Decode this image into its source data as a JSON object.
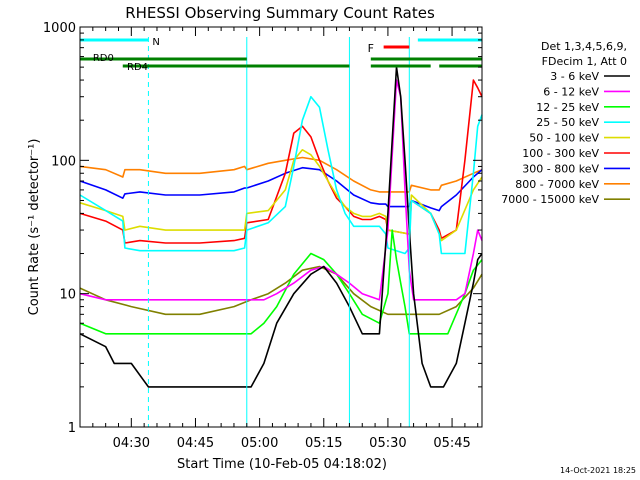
{
  "chart_data": {
    "type": "line",
    "title": "RHESSI Observing Summary Count Rates",
    "xlabel": "Start Time (10-Feb-05 04:18:02)",
    "ylabel": "Count Rate (s⁻¹ detector⁻¹)",
    "yscale": "log",
    "ylim": [
      1,
      1000
    ],
    "xlim_minutes": [
      0,
      94
    ],
    "y_ticks": [
      1,
      10,
      100,
      1000
    ],
    "y_tick_labels": [
      "1",
      "10",
      "100",
      "1000"
    ],
    "x_ticks_minutes": [
      12,
      27,
      42,
      57,
      72,
      87
    ],
    "x_tick_labels": [
      "04:30",
      "04:45",
      "05:00",
      "05:15",
      "05:30",
      "05:45"
    ],
    "legend_header": [
      "Det 1,3,4,5,6,9,",
      "FDecim 1, Att 0"
    ],
    "series": [
      {
        "name": "3 - 6 keV",
        "color": "#000000",
        "x": [
          0,
          6,
          8,
          12,
          16,
          22,
          28,
          34,
          38,
          40,
          43,
          46,
          50,
          54,
          57,
          60,
          63,
          66,
          68,
          70,
          72,
          74,
          75,
          76,
          77,
          78,
          80,
          82,
          85,
          88,
          90,
          92,
          93,
          94
        ],
        "values": [
          5,
          4,
          3,
          3,
          2,
          2,
          2,
          2,
          2,
          2,
          3,
          6,
          10,
          14,
          16,
          12,
          8,
          5,
          5,
          5,
          40,
          500,
          300,
          100,
          30,
          10,
          3,
          2,
          2,
          3,
          6,
          12,
          18,
          20
        ]
      },
      {
        "name": "6 - 12 keV",
        "color": "#ff00ff",
        "x": [
          0,
          6,
          12,
          20,
          28,
          36,
          40,
          43,
          46,
          50,
          54,
          57,
          60,
          63,
          66,
          70,
          72,
          74,
          75,
          76,
          77,
          78,
          80,
          84,
          88,
          90,
          92,
          93,
          94
        ],
        "values": [
          10,
          9,
          9,
          9,
          9,
          9,
          9,
          9,
          10,
          12,
          15,
          16,
          14,
          12,
          10,
          9,
          30,
          400,
          300,
          60,
          15,
          9,
          9,
          9,
          9,
          10,
          20,
          30,
          25
        ]
      },
      {
        "name": "12 - 25 keV",
        "color": "#00ff00",
        "x": [
          0,
          6,
          12,
          20,
          28,
          36,
          40,
          43,
          46,
          50,
          54,
          57,
          60,
          63,
          66,
          70,
          72,
          73,
          74,
          75,
          76,
          77,
          78,
          82,
          86,
          90,
          92,
          94
        ],
        "values": [
          6,
          5,
          5,
          5,
          5,
          5,
          5,
          6,
          8,
          14,
          20,
          18,
          14,
          10,
          7,
          6,
          10,
          30,
          18,
          12,
          8,
          5,
          5,
          5,
          5,
          10,
          15,
          18
        ]
      },
      {
        "name": "25 - 50 keV",
        "color": "#00ffff",
        "x": [
          0,
          6,
          10,
          10.5,
          14,
          20,
          28,
          36,
          38.5,
          39,
          44,
          48,
          50,
          52,
          54,
          56,
          58,
          60,
          62,
          64,
          66,
          68,
          70,
          71.5,
          72,
          76,
          77,
          77.5,
          82,
          84,
          84.5,
          88,
          90,
          92,
          93,
          94
        ],
        "values": [
          55,
          42,
          35,
          22,
          21,
          21,
          21,
          21,
          22,
          30,
          34,
          45,
          90,
          200,
          300,
          250,
          120,
          60,
          40,
          32,
          32,
          32,
          32,
          28,
          22,
          20,
          22,
          50,
          40,
          28,
          20,
          20,
          20,
          80,
          180,
          220
        ]
      },
      {
        "name": "50 - 100 keV",
        "color": "#dddd00",
        "x": [
          0,
          6,
          10,
          10.5,
          14,
          20,
          28,
          36,
          38.5,
          39,
          44,
          48,
          50,
          52,
          54,
          56,
          58,
          60,
          62,
          64,
          66,
          68,
          70,
          71.5,
          72,
          77,
          77.5,
          82,
          84,
          84.5,
          88,
          92,
          94
        ],
        "values": [
          48,
          42,
          38,
          30,
          32,
          30,
          30,
          30,
          30,
          40,
          42,
          60,
          100,
          120,
          110,
          90,
          70,
          55,
          45,
          40,
          38,
          38,
          40,
          38,
          30,
          28,
          55,
          40,
          28,
          25,
          30,
          60,
          75
        ]
      },
      {
        "name": "100 - 300 keV",
        "color": "#ff0000",
        "x": [
          0,
          6,
          10,
          10.5,
          14,
          20,
          28,
          36,
          38.5,
          39,
          44,
          48,
          50,
          52,
          54,
          56,
          58,
          60,
          62,
          64,
          66,
          68,
          70,
          71.5,
          72,
          77,
          77.5,
          82,
          84,
          84.5,
          88,
          90,
          92,
          93,
          94
        ],
        "values": [
          40,
          35,
          30,
          24,
          25,
          24,
          24,
          25,
          26,
          34,
          36,
          80,
          160,
          180,
          150,
          100,
          70,
          52,
          45,
          38,
          36,
          36,
          38,
          36,
          30,
          28,
          50,
          40,
          30,
          26,
          30,
          100,
          400,
          350,
          300
        ]
      },
      {
        "name": "300 - 800 keV",
        "color": "#0000ff",
        "x": [
          0,
          6,
          10,
          10.5,
          14,
          20,
          28,
          36,
          38.5,
          39,
          44,
          48,
          52,
          56,
          60,
          64,
          68,
          70,
          71.5,
          72,
          77,
          77.5,
          82,
          84,
          84.5,
          88,
          92,
          94
        ],
        "values": [
          70,
          60,
          52,
          56,
          58,
          55,
          55,
          58,
          62,
          62,
          70,
          80,
          88,
          85,
          70,
          55,
          48,
          47,
          47,
          45,
          45,
          50,
          44,
          42,
          45,
          55,
          75,
          85
        ]
      },
      {
        "name": "800 - 7000 keV",
        "color": "#ff8000",
        "x": [
          0,
          6,
          10,
          10.5,
          14,
          20,
          28,
          36,
          38.5,
          39,
          44,
          48,
          52,
          56,
          60,
          64,
          68,
          70,
          71.5,
          72,
          77,
          77.5,
          82,
          84,
          84.5,
          88,
          92,
          94
        ],
        "values": [
          90,
          85,
          75,
          85,
          85,
          80,
          80,
          85,
          90,
          85,
          95,
          100,
          105,
          100,
          85,
          70,
          60,
          58,
          58,
          58,
          58,
          65,
          60,
          60,
          65,
          70,
          80,
          85
        ]
      },
      {
        "name": "7000 - 15000 keV",
        "color": "#808000",
        "x": [
          0,
          6,
          12,
          20,
          28,
          36,
          40,
          44,
          48,
          52,
          56,
          60,
          64,
          68,
          72,
          76,
          80,
          84,
          88,
          92,
          94
        ],
        "values": [
          11,
          9,
          8,
          7,
          7,
          8,
          9,
          10,
          12,
          15,
          16,
          14,
          10,
          8,
          7,
          7,
          7,
          7,
          8,
          11,
          14
        ]
      }
    ],
    "annotations": {
      "N": {
        "label": "N",
        "color": "#00ffff"
      },
      "F": {
        "label": "F",
        "color": "#ff0000"
      },
      "RD0": {
        "label": "RD0",
        "color": "#008000"
      },
      "RD4": {
        "label": "RD4",
        "color": "#008000"
      },
      "night_intervals_minutes": [
        [
          0,
          16
        ],
        [
          79,
          94
        ]
      ],
      "flare_interval_minutes": [
        71,
        77
      ],
      "rd0_intervals_minutes": [
        [
          0,
          39
        ],
        [
          68,
          94
        ]
      ],
      "rd4_intervals_minutes": [
        [
          10,
          39
        ],
        [
          39,
          63
        ],
        [
          68,
          82
        ],
        [
          84,
          94
        ]
      ],
      "saa_lines_minutes": [
        0,
        16,
        39,
        63,
        77,
        94
      ]
    },
    "footer_date": "14-Oct-2021 18:25"
  }
}
